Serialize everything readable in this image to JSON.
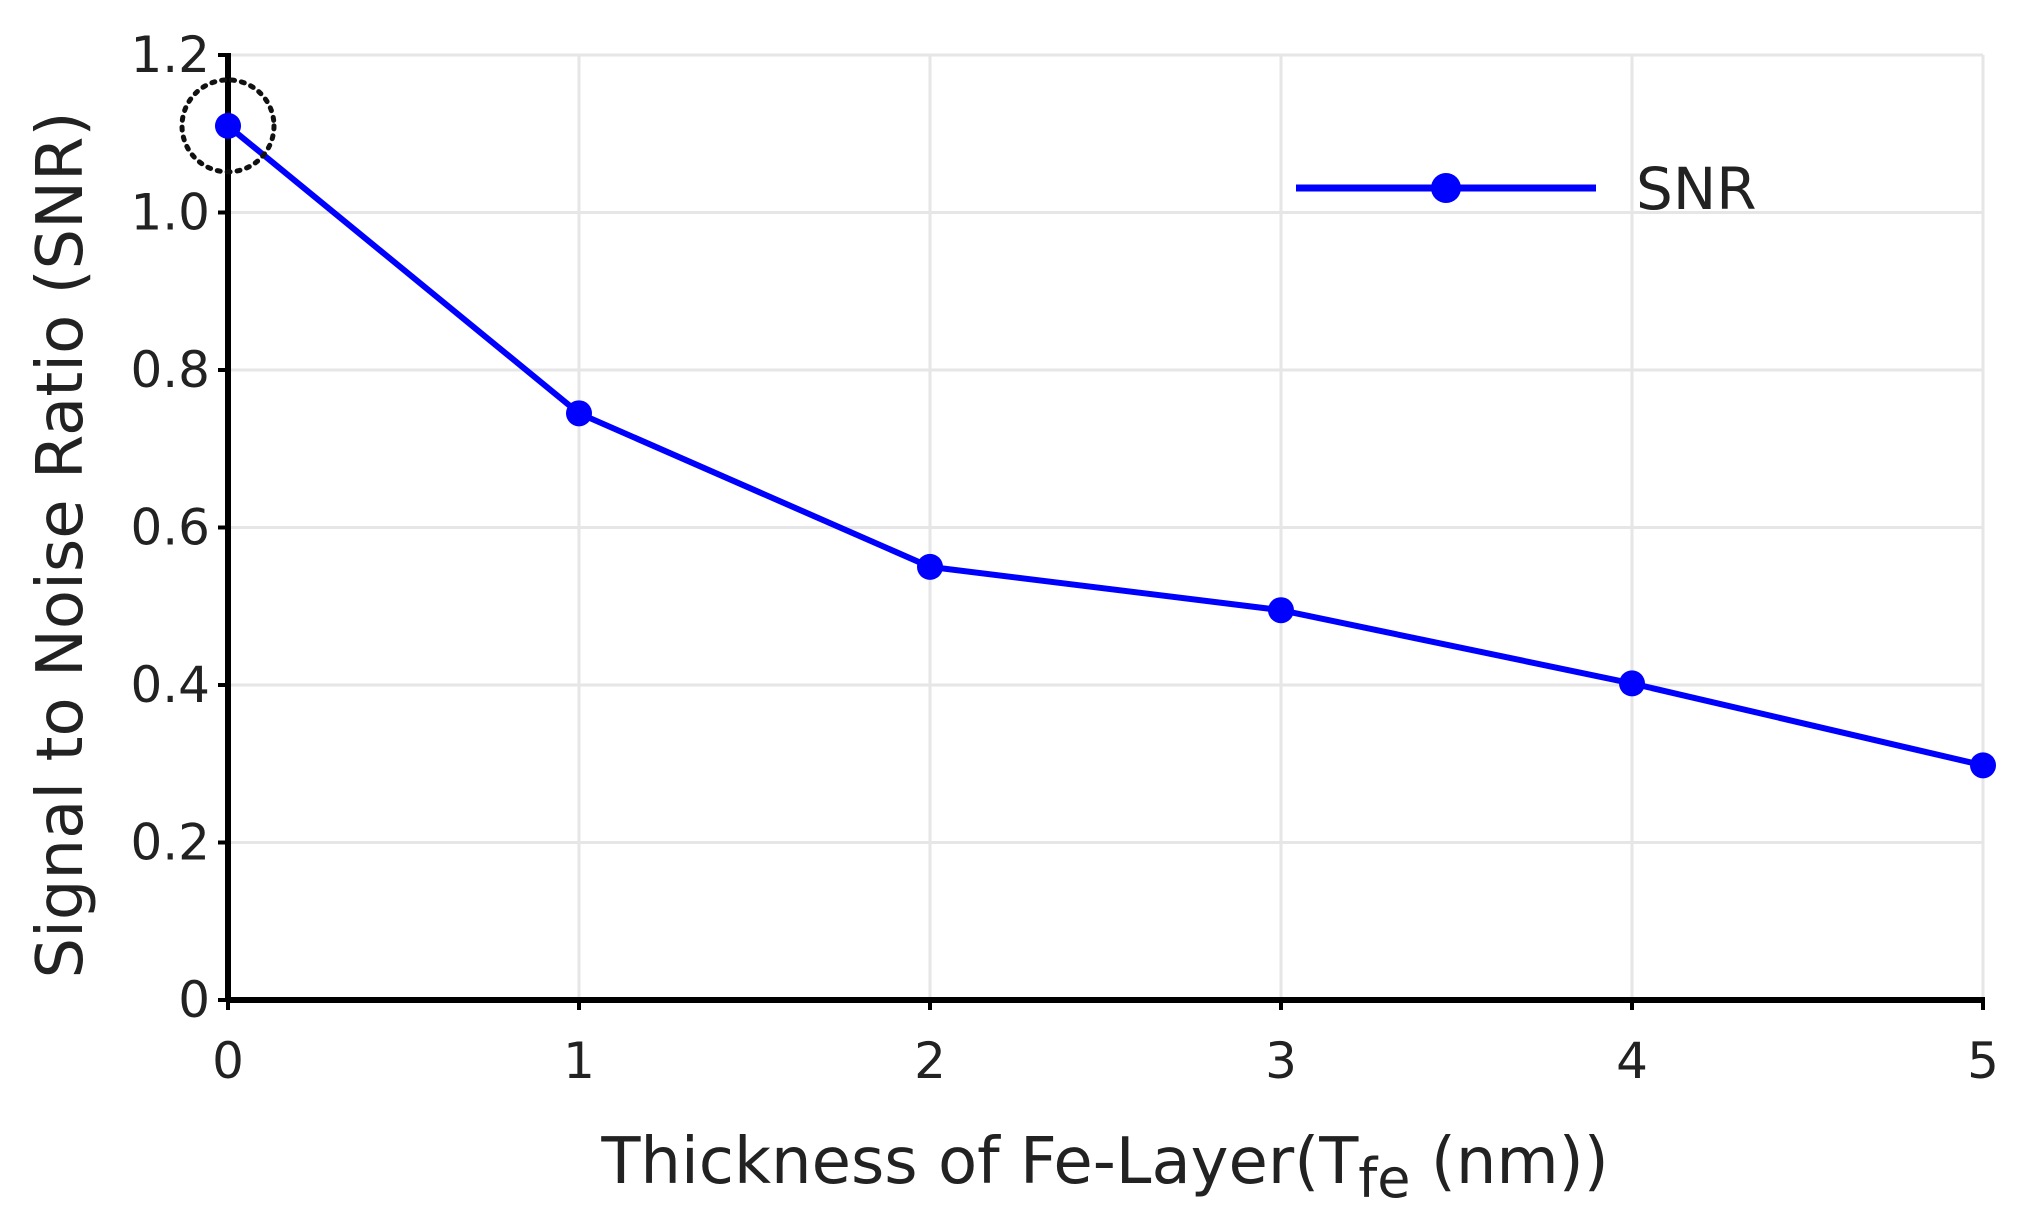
{
  "chart_data": {
    "type": "line",
    "title": "",
    "xlabel": "Thickness of Fe-Layer(T",
    "xlabel_subscript": "fe",
    "xlabel_suffix": " (nm))",
    "ylabel": "Signal to Noise Ratio (SNR)",
    "xlim": [
      0,
      5
    ],
    "ylim": [
      0,
      1.2
    ],
    "x_ticks": [
      "0",
      "1",
      "2",
      "3",
      "4",
      "5"
    ],
    "y_ticks": [
      "0",
      "0.2",
      "0.4",
      "0.6",
      "0.8",
      "1.0",
      "1.2"
    ],
    "grid": true,
    "legend_position": "top-right",
    "series": [
      {
        "name": "SNR",
        "color": "#0000ff",
        "x": [
          0,
          1,
          2,
          3,
          4,
          5
        ],
        "y": [
          1.11,
          0.745,
          0.55,
          0.495,
          0.402,
          0.298
        ]
      }
    ],
    "annotations": [
      {
        "type": "dotted-circle",
        "x": 0,
        "y": 1.11
      }
    ]
  }
}
